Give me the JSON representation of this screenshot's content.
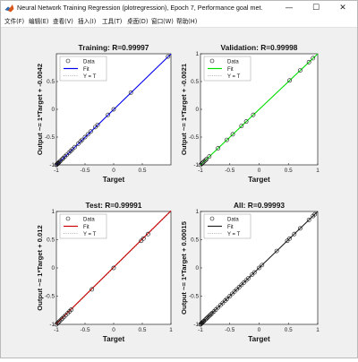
{
  "window": {
    "title": "Neural Network Training Regression (plotregression), Epoch 7, Performance goal met.",
    "controls": {
      "minimize": "—",
      "maximize": "☐",
      "close": "✕"
    }
  },
  "menu": [
    {
      "label": "文件(F)"
    },
    {
      "label": "编辑(E)"
    },
    {
      "label": "查看(V)"
    },
    {
      "label": "插入(I)"
    },
    {
      "label": "工具(T)"
    },
    {
      "label": "桌面(D)"
    },
    {
      "label": "窗口(W)"
    },
    {
      "label": "帮助(H)"
    }
  ],
  "chart_data": [
    {
      "type": "scatter",
      "title": "Training: R=0.99997",
      "xlabel": "Target",
      "ylabel": "Output ~= 1*Target + -0.0042",
      "xlim": [
        -1,
        1
      ],
      "ylim": [
        -1,
        1
      ],
      "xticks": [
        "-1",
        "-0.5",
        "0",
        "0.5"
      ],
      "yticks": [
        "-1",
        "-0.5",
        "0",
        "0.5"
      ],
      "fit_color": "#0000ee",
      "fit_line": {
        "slope": 1,
        "intercept": -0.0042
      },
      "legend": [
        "Data",
        "Fit",
        "Y = T"
      ],
      "points": [
        [
          -1,
          -1
        ],
        [
          -0.99,
          -0.99
        ],
        [
          -0.98,
          -0.98
        ],
        [
          -0.97,
          -0.97
        ],
        [
          -0.96,
          -0.96
        ],
        [
          -0.95,
          -0.95
        ],
        [
          -0.93,
          -0.93
        ],
        [
          -0.9,
          -0.9
        ],
        [
          -0.88,
          -0.88
        ],
        [
          -0.85,
          -0.85
        ],
        [
          -0.82,
          -0.82
        ],
        [
          -0.78,
          -0.78
        ],
        [
          -0.75,
          -0.75
        ],
        [
          -0.72,
          -0.72
        ],
        [
          -0.68,
          -0.68
        ],
        [
          -0.62,
          -0.62
        ],
        [
          -0.58,
          -0.58
        ],
        [
          -0.55,
          -0.55
        ],
        [
          -0.5,
          -0.5
        ],
        [
          -0.45,
          -0.45
        ],
        [
          -0.4,
          -0.4
        ],
        [
          -0.32,
          -0.32
        ],
        [
          -0.28,
          -0.28
        ],
        [
          -0.1,
          -0.1
        ],
        [
          0,
          0
        ],
        [
          0.3,
          0.3
        ],
        [
          0.95,
          0.95
        ]
      ]
    },
    {
      "type": "scatter",
      "title": "Validation: R=0.99998",
      "xlabel": "Target",
      "ylabel": "Output ~= 1*Target + -0.0021",
      "xlim": [
        -1,
        1
      ],
      "ylim": [
        -1,
        1
      ],
      "xticks": [
        "-1",
        "-0.5",
        "0",
        "0.5",
        "1"
      ],
      "yticks": [
        "-1",
        "-0.5",
        "0",
        "0.5",
        "1"
      ],
      "fit_color": "#00dd00",
      "fit_line": {
        "slope": 1,
        "intercept": -0.0021
      },
      "legend": [
        "Data",
        "Fit",
        "Y = T"
      ],
      "points": [
        [
          -1,
          -1
        ],
        [
          -0.98,
          -0.98
        ],
        [
          -0.96,
          -0.96
        ],
        [
          -0.94,
          -0.94
        ],
        [
          -0.92,
          -0.92
        ],
        [
          -0.9,
          -0.9
        ],
        [
          -0.85,
          -0.85
        ],
        [
          -0.7,
          -0.7
        ],
        [
          -0.55,
          -0.55
        ],
        [
          -0.45,
          -0.45
        ],
        [
          -0.3,
          -0.3
        ],
        [
          -0.22,
          -0.22
        ],
        [
          -0.1,
          -0.1
        ],
        [
          0.52,
          0.52
        ],
        [
          0.7,
          0.7
        ],
        [
          0.85,
          0.85
        ],
        [
          0.92,
          0.92
        ]
      ]
    },
    {
      "type": "scatter",
      "title": "Test: R=0.99991",
      "xlabel": "Target",
      "ylabel": "Output ~= 1*Target + 0.012",
      "xlim": [
        -1,
        1
      ],
      "ylim": [
        -1,
        1
      ],
      "xticks": [
        "-1",
        "-0.5",
        "0",
        "0.5",
        "1"
      ],
      "yticks": [
        "-1",
        "-0.5",
        "0",
        "0.5",
        "1"
      ],
      "fit_color": "#cc0000",
      "fit_line": {
        "slope": 1,
        "intercept": 0.012
      },
      "legend": [
        "Data",
        "Fit",
        "Y = T"
      ],
      "points": [
        [
          -1,
          -1
        ],
        [
          -0.98,
          -0.98
        ],
        [
          -0.96,
          -0.96
        ],
        [
          -0.94,
          -0.94
        ],
        [
          -0.92,
          -0.92
        ],
        [
          -0.9,
          -0.9
        ],
        [
          -0.87,
          -0.87
        ],
        [
          -0.84,
          -0.84
        ],
        [
          -0.8,
          -0.8
        ],
        [
          -0.77,
          -0.77
        ],
        [
          -0.74,
          -0.74
        ],
        [
          -0.38,
          -0.38
        ],
        [
          0,
          0
        ],
        [
          0.48,
          0.48
        ],
        [
          0.52,
          0.52
        ],
        [
          0.6,
          0.6
        ]
      ]
    },
    {
      "type": "scatter",
      "title": "All: R=0.99993",
      "xlabel": "Target",
      "ylabel": "Output ~= 1*Target + 0.00015",
      "xlim": [
        -1,
        1
      ],
      "ylim": [
        -1,
        1
      ],
      "xticks": [
        "-1",
        "-0.5",
        "0",
        "0.5",
        "1"
      ],
      "yticks": [
        "-1",
        "-0.5",
        "0",
        "0.5",
        "1"
      ],
      "fit_color": "#222222",
      "fit_line": {
        "slope": 1,
        "intercept": 0.00015
      },
      "legend": [
        "Data",
        "Fit",
        "Y = T"
      ],
      "points": [
        [
          -1,
          -1
        ],
        [
          -0.99,
          -0.99
        ],
        [
          -0.98,
          -0.98
        ],
        [
          -0.97,
          -0.97
        ],
        [
          -0.96,
          -0.96
        ],
        [
          -0.95,
          -0.95
        ],
        [
          -0.94,
          -0.94
        ],
        [
          -0.92,
          -0.92
        ],
        [
          -0.9,
          -0.9
        ],
        [
          -0.88,
          -0.88
        ],
        [
          -0.86,
          -0.86
        ],
        [
          -0.84,
          -0.84
        ],
        [
          -0.82,
          -0.82
        ],
        [
          -0.8,
          -0.8
        ],
        [
          -0.77,
          -0.77
        ],
        [
          -0.74,
          -0.74
        ],
        [
          -0.7,
          -0.7
        ],
        [
          -0.66,
          -0.66
        ],
        [
          -0.62,
          -0.62
        ],
        [
          -0.58,
          -0.58
        ],
        [
          -0.55,
          -0.55
        ],
        [
          -0.5,
          -0.5
        ],
        [
          -0.46,
          -0.46
        ],
        [
          -0.42,
          -0.42
        ],
        [
          -0.38,
          -0.38
        ],
        [
          -0.34,
          -0.34
        ],
        [
          -0.3,
          -0.3
        ],
        [
          -0.26,
          -0.26
        ],
        [
          -0.22,
          -0.22
        ],
        [
          -0.18,
          -0.18
        ],
        [
          -0.12,
          -0.12
        ],
        [
          -0.08,
          -0.08
        ],
        [
          0,
          0
        ],
        [
          0.05,
          0.05
        ],
        [
          0.3,
          0.3
        ],
        [
          0.48,
          0.48
        ],
        [
          0.52,
          0.52
        ],
        [
          0.6,
          0.6
        ],
        [
          0.7,
          0.7
        ],
        [
          0.85,
          0.85
        ],
        [
          0.92,
          0.92
        ],
        [
          0.95,
          0.95
        ]
      ]
    }
  ]
}
